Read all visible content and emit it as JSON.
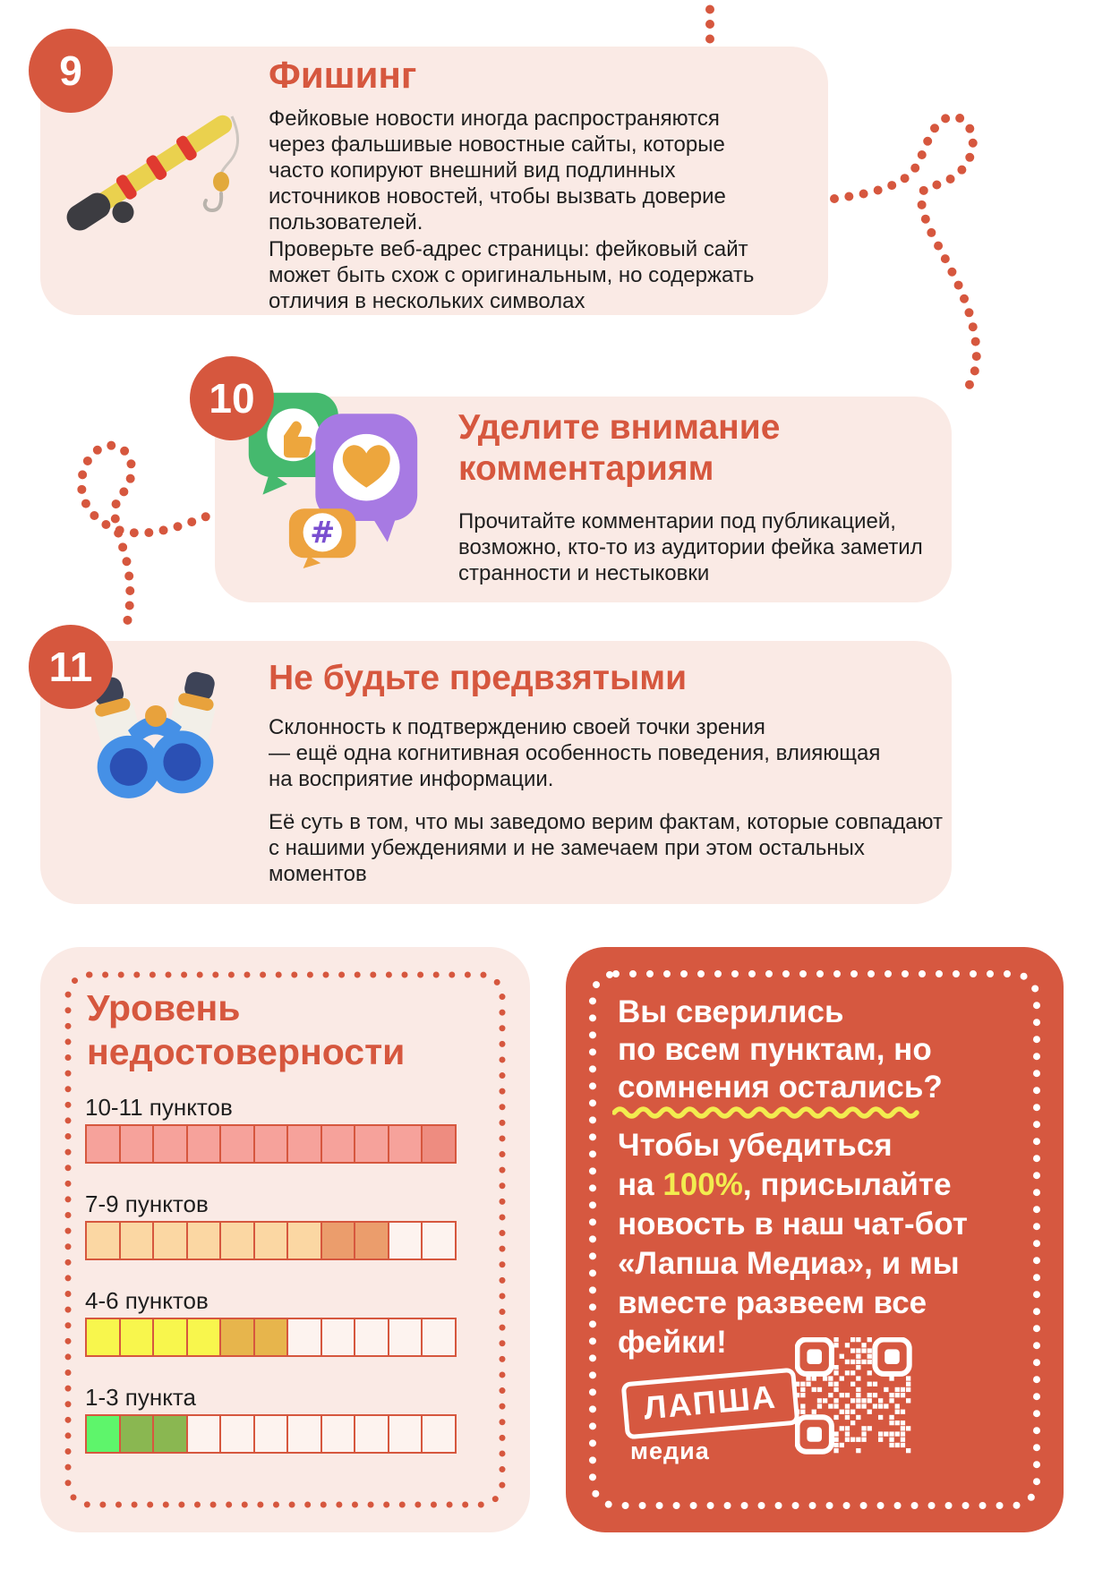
{
  "colors": {
    "accent": "#d6573e",
    "panel_bg": "#faeae5",
    "cta_bg": "#d65840",
    "highlight_yellow": "#f2ec4f",
    "text": "#1f1f1f"
  },
  "sections": [
    {
      "number": "9",
      "title": "Фишинг",
      "icon": "fishing-rod",
      "paragraphs": [
        "Фейковые новости иногда распространяются\nчерез фальшивые новостные сайты, которые\nчасто копируют внешний вид подлинных\nисточников новостей, чтобы вызвать доверие\nпользователей.",
        "Проверьте веб-адрес страницы: фейковый сайт\nможет быть схож с оригинальным, но содержать\nотличия в нескольких символах"
      ]
    },
    {
      "number": "10",
      "title": "Уделите внимание\nкомментариям",
      "icon": "social-reactions",
      "paragraphs": [
        "Прочитайте комментарии под публикацией,\nвозможно, кто-то из аудитории фейка заметил\nстранности и нестыковки"
      ]
    },
    {
      "number": "11",
      "title": "Не будьте предвзятыми",
      "icon": "binoculars",
      "paragraphs": [
        "Склонность к подтверждению своей точки зрения\n— ещё одна когнитивная особенность поведения, влияющая\nна восприятие информации.",
        "Её суть в том, что мы заведомо верим фактам, которые совпадают\nс нашими убеждениями и не замечаем при этом остальных моментов"
      ]
    }
  ],
  "unreliability_scale": {
    "title": "Уровень\nнедостоверности",
    "rows": [
      {
        "label": "10-11 пунктов",
        "cells": [
          "#f6a29b",
          "#f6a29b",
          "#f6a29b",
          "#f6a29b",
          "#f6a29b",
          "#f6a29b",
          "#f6a29b",
          "#f6a29b",
          "#f6a29b",
          "#f6a29b",
          "#ee8c80"
        ]
      },
      {
        "label": "7-9 пунктов",
        "cells": [
          "#fbd7a3",
          "#fbd7a3",
          "#fbd7a3",
          "#fbd7a3",
          "#fbd7a3",
          "#fbd7a3",
          "#fbd7a3",
          "#eb9d6c",
          "#eb9d6c",
          "#fdf3ef",
          "#fdf3ef"
        ]
      },
      {
        "label": "4-6 пунктов",
        "cells": [
          "#f8f64d",
          "#f8f64d",
          "#f8f64d",
          "#f8f64d",
          "#e7b54c",
          "#e7b54c",
          "#fdf3ef",
          "#fdf3ef",
          "#fdf3ef",
          "#fdf3ef",
          "#fdf3ef"
        ]
      },
      {
        "label": "1-3 пункта",
        "cells": [
          "#5ef56b",
          "#8ab751",
          "#8ab751",
          "#fdf3ef",
          "#fdf3ef",
          "#fdf3ef",
          "#fdf3ef",
          "#fdf3ef",
          "#fdf3ef",
          "#fdf3ef",
          "#fdf3ef"
        ]
      }
    ]
  },
  "cta": {
    "heading": "Вы сверились\nпо всем пунктам, но\nсомнения остались?",
    "body_before": "Чтобы убедиться\nна ",
    "body_highlight": "100%",
    "body_after": ", присылайте\nновость в наш чат-бот\n«Лапша Медиа», и мы\nвместе развеем все\nфейки!",
    "logo_title": "ЛАПША",
    "logo_subtitle": "медиа"
  },
  "icons": {
    "hashtag_glyph": "#"
  }
}
